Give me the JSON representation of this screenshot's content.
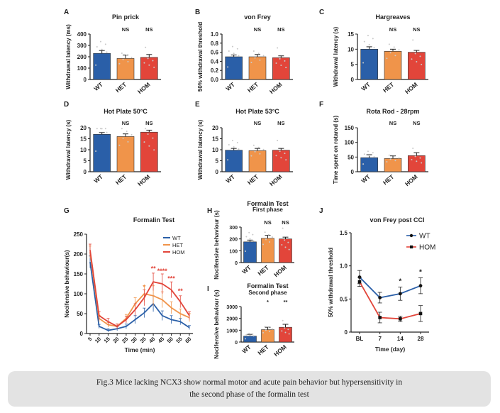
{
  "colors": {
    "WT": "#2a5fa8",
    "HET": "#f0944a",
    "HOM": "#e2453a",
    "sig": "#e2453a",
    "axis": "#222222"
  },
  "groups": [
    "WT",
    "HET",
    "HOM"
  ],
  "caption": {
    "line1": "Fig.3 Mice lacking NCX3 show normal motor and acute pain behavior but hypersensitivity in",
    "line2": "the second phase of the formalin test"
  },
  "chart_data": [
    {
      "id": "A",
      "type": "bar",
      "title": "Pin prick",
      "title2": "",
      "ylabel": "Withdrawal latency (ms)",
      "categories": [
        "WT",
        "HET",
        "HOM"
      ],
      "values": [
        230,
        185,
        195
      ],
      "errors": [
        25,
        30,
        25
      ],
      "ylim": [
        0,
        400
      ],
      "yticks": [
        "0",
        "100",
        "200",
        "300",
        "400"
      ],
      "sig": [
        "",
        "NS",
        "NS"
      ]
    },
    {
      "id": "B",
      "type": "bar",
      "title": "von Frey",
      "title2": "",
      "ylabel": "50% withdrawal threshold",
      "categories": [
        "WT",
        "HET",
        "HOM"
      ],
      "values": [
        0.5,
        0.5,
        0.48
      ],
      "errors": [
        0.04,
        0.05,
        0.04
      ],
      "ylim": [
        0,
        1.0
      ],
      "yticks": [
        "0.0",
        "0.2",
        "0.4",
        "0.6",
        "0.8",
        "1.0"
      ],
      "sig": [
        "",
        "NS",
        "NS"
      ]
    },
    {
      "id": "C",
      "type": "bar",
      "title": "Hargreaves",
      "title2": "",
      "ylabel": "Withdrawal latency (s)",
      "categories": [
        "WT",
        "HET",
        "HOM"
      ],
      "values": [
        10,
        9.3,
        9
      ],
      "errors": [
        0.8,
        0.7,
        0.6
      ],
      "ylim": [
        0,
        15
      ],
      "yticks": [
        "0",
        "5",
        "10",
        "15"
      ],
      "sig": [
        "",
        "NS",
        "NS"
      ]
    },
    {
      "id": "D",
      "type": "bar",
      "title": "Hot Plate 50°C",
      "title2": "",
      "ylabel": "Withdrawal latency (s)",
      "categories": [
        "WT",
        "HET",
        "HOM"
      ],
      "values": [
        17,
        16,
        18
      ],
      "errors": [
        0.8,
        1.2,
        0.9
      ],
      "ylim": [
        0,
        20
      ],
      "yticks": [
        "0",
        "5",
        "10",
        "15",
        "20"
      ],
      "sig": [
        "",
        "NS",
        "NS"
      ]
    },
    {
      "id": "E",
      "type": "bar",
      "title": "Hot Plate 53°C",
      "title2": "",
      "ylabel": "Withdrawal latency (s)",
      "categories": [
        "WT",
        "HET",
        "HOM"
      ],
      "values": [
        9.8,
        9.6,
        9.8
      ],
      "errors": [
        0.8,
        1.0,
        0.8
      ],
      "ylim": [
        0,
        20
      ],
      "yticks": [
        "0",
        "5",
        "10",
        "15",
        "20"
      ],
      "sig": [
        "",
        "NS",
        "NS"
      ]
    },
    {
      "id": "F",
      "type": "bar",
      "title": "Rota Rod - 28rpm",
      "title2": "",
      "ylabel": "Time spent on rotarod (s)",
      "categories": [
        "WT",
        "HET",
        "HOM"
      ],
      "values": [
        48,
        45,
        55
      ],
      "errors": [
        10,
        9,
        10
      ],
      "ylim": [
        0,
        150
      ],
      "yticks": [
        "0",
        "50",
        "100",
        "150"
      ],
      "sig": [
        "",
        "NS",
        "NS"
      ]
    },
    {
      "id": "G",
      "type": "line",
      "title": "Formalin Test",
      "xlabel": "Time (min)",
      "ylabel": "Nocifensive behaviour(s)",
      "x": [
        5,
        10,
        15,
        20,
        25,
        30,
        35,
        40,
        45,
        50,
        55,
        60
      ],
      "xticks": [
        "5",
        "10",
        "15",
        "20",
        "25",
        "30",
        "35",
        "40",
        "45",
        "50",
        "55",
        "60"
      ],
      "ylim": [
        0,
        250
      ],
      "yticks": [
        "0",
        "50",
        "100",
        "150",
        "200",
        "250"
      ],
      "series": [
        {
          "name": "WT",
          "values": [
            180,
            18,
            8,
            12,
            18,
            35,
            52,
            75,
            45,
            35,
            30,
            15
          ],
          "errors": [
            15,
            5,
            4,
            5,
            6,
            10,
            12,
            20,
            12,
            10,
            8,
            5
          ]
        },
        {
          "name": "HET",
          "values": [
            205,
            38,
            22,
            18,
            38,
            75,
            100,
            95,
            85,
            65,
            50,
            40
          ],
          "errors": [
            15,
            8,
            6,
            6,
            10,
            15,
            20,
            25,
            20,
            15,
            12,
            10
          ]
        },
        {
          "name": "HOM",
          "values": [
            210,
            45,
            30,
            18,
            35,
            60,
            90,
            130,
            125,
            110,
            80,
            45
          ],
          "errors": [
            15,
            10,
            8,
            6,
            8,
            15,
            20,
            22,
            25,
            20,
            15,
            10
          ]
        }
      ],
      "annotations": [
        {
          "x": 35,
          "label": "*",
          "y": 112,
          "color": "HET"
        },
        {
          "x": 40,
          "label": "**",
          "y": 158,
          "color": "sig"
        },
        {
          "x": 45,
          "label": "****",
          "y": 152,
          "color": "sig"
        },
        {
          "x": 50,
          "label": "***",
          "y": 133,
          "color": "sig"
        },
        {
          "x": 55,
          "label": "**",
          "y": 102,
          "color": "sig"
        }
      ]
    },
    {
      "id": "H",
      "type": "bar",
      "title": "Formalin Test",
      "title2": "First phase",
      "ylabel": "Nocifensive behaviour (s)",
      "categories": [
        "WT",
        "HET",
        "HOM"
      ],
      "values": [
        175,
        205,
        200
      ],
      "errors": [
        15,
        25,
        15
      ],
      "ylim": [
        0,
        300
      ],
      "yticks": [
        "0",
        "100",
        "200",
        "300"
      ],
      "sig": [
        "",
        "NS",
        "NS"
      ]
    },
    {
      "id": "I",
      "type": "bar",
      "title": "Formalin Test",
      "title2": "Second phase",
      "ylabel": "Nocifensive behaviour (s)",
      "categories": [
        "WT",
        "HET",
        "HOM"
      ],
      "values": [
        500,
        1050,
        1250
      ],
      "errors": [
        150,
        200,
        250
      ],
      "ylim": [
        0,
        3000
      ],
      "yticks": [
        "0",
        "1000",
        "2000",
        "3000"
      ],
      "sig": [
        "",
        "*",
        "**"
      ]
    },
    {
      "id": "J",
      "type": "line",
      "title": "von Frey post CCI",
      "xlabel": "Time (day)",
      "ylabel": "50% withdrawal threshold",
      "categories": [
        "BL",
        "7",
        "14",
        "28"
      ],
      "ylim": [
        0,
        1.5
      ],
      "yticks": [
        "0",
        "0.5",
        "1.0",
        "1.5"
      ],
      "legend": "top-right",
      "series": [
        {
          "name": "WT",
          "values": [
            0.83,
            0.52,
            0.58,
            0.7
          ],
          "errors": [
            0.1,
            0.08,
            0.1,
            0.12
          ]
        },
        {
          "name": "HOM",
          "values": [
            0.76,
            0.22,
            0.2,
            0.28
          ],
          "errors": [
            0.07,
            0.08,
            0.04,
            0.12
          ]
        }
      ],
      "annotations": [
        {
          "x": "14",
          "label": "*"
        },
        {
          "x": "28",
          "label": "*"
        }
      ]
    }
  ]
}
